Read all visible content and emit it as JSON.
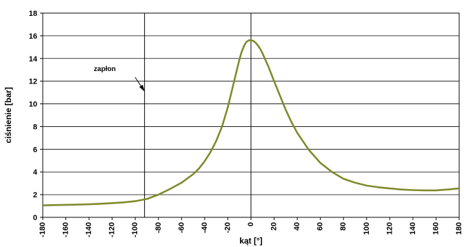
{
  "chart_data": {
    "type": "line",
    "title": "",
    "xlabel": "kąt [°]",
    "ylabel": "ciśnienie [bar]",
    "xlim": [
      -180,
      180
    ],
    "ylim": [
      0,
      18
    ],
    "x_ticks": [
      -180,
      -160,
      -140,
      -120,
      -100,
      -80,
      -60,
      -40,
      -20,
      0,
      20,
      40,
      60,
      80,
      100,
      120,
      140,
      160,
      180
    ],
    "y_ticks": [
      0,
      2,
      4,
      6,
      8,
      10,
      12,
      14,
      16,
      18
    ],
    "grid": {
      "horizontal": true,
      "vertical": false
    },
    "legend": "none",
    "series": [
      {
        "color": "#7f8a2a",
        "x": [
          -180,
          -170,
          -160,
          -150,
          -140,
          -130,
          -120,
          -110,
          -100,
          -90,
          -80,
          -70,
          -60,
          -50,
          -45,
          -40,
          -35,
          -30,
          -25,
          -20,
          -15,
          -10,
          -8,
          -6,
          -4,
          -2,
          0,
          2,
          4,
          6,
          8,
          10,
          15,
          20,
          25,
          30,
          35,
          40,
          50,
          60,
          70,
          80,
          90,
          100,
          110,
          120,
          130,
          140,
          150,
          160,
          170,
          180
        ],
        "y": [
          1.05,
          1.08,
          1.1,
          1.12,
          1.15,
          1.2,
          1.25,
          1.32,
          1.42,
          1.62,
          2.0,
          2.5,
          3.05,
          3.8,
          4.3,
          4.95,
          5.75,
          6.75,
          8.0,
          9.7,
          11.8,
          13.9,
          14.6,
          15.1,
          15.45,
          15.6,
          15.62,
          15.55,
          15.4,
          15.15,
          14.85,
          14.45,
          13.3,
          12.0,
          10.75,
          9.5,
          8.4,
          7.45,
          5.95,
          4.8,
          4.0,
          3.4,
          3.05,
          2.8,
          2.65,
          2.55,
          2.45,
          2.4,
          2.38,
          2.38,
          2.45,
          2.55
        ]
      }
    ],
    "vertical_lines": [
      -92,
      0
    ],
    "annotations": [
      {
        "text": "zapłon",
        "x": -92,
        "y": 12
      }
    ]
  }
}
